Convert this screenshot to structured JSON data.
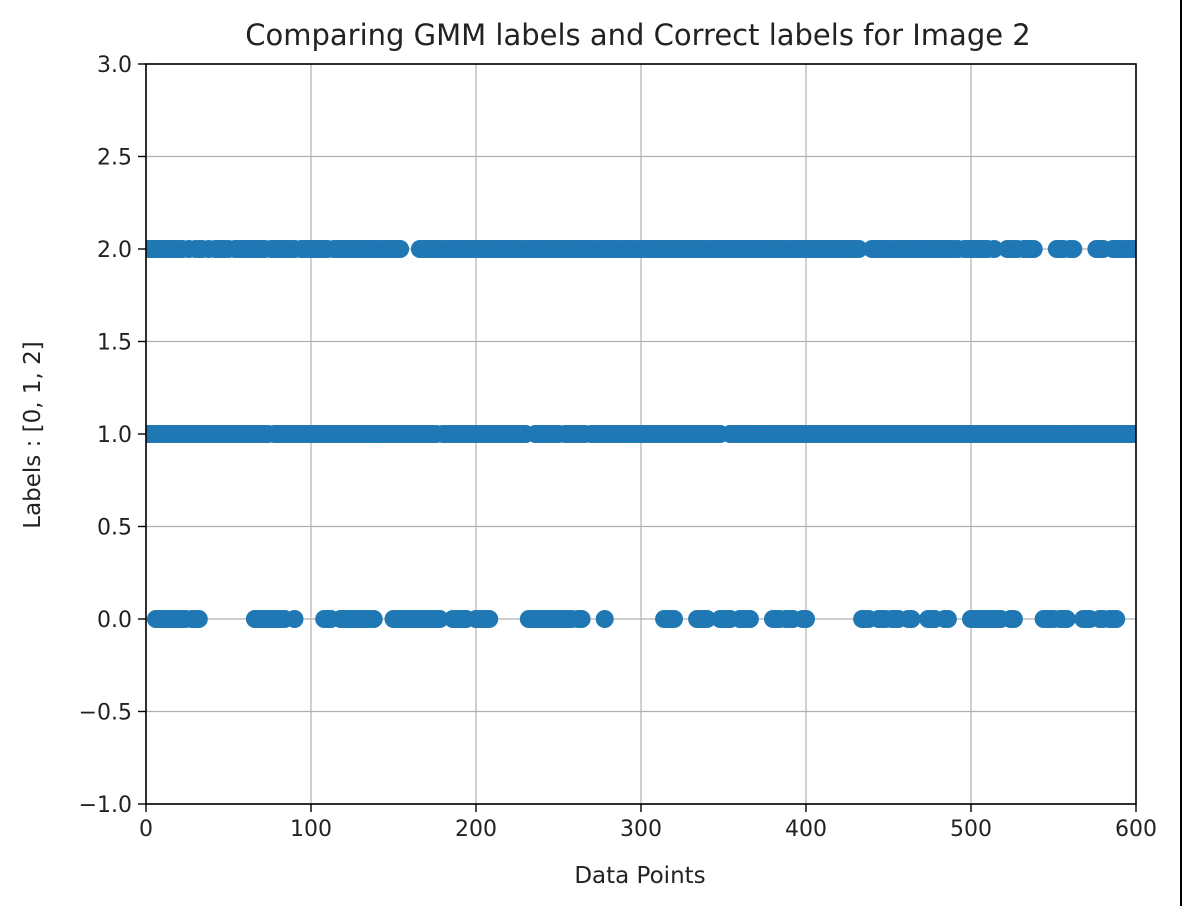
{
  "chart_data": {
    "type": "scatter",
    "title": "Comparing GMM labels and Correct labels for Image 2",
    "xlabel": "Data Points",
    "ylabel": "Labels : [0, 1, 2]",
    "xlim": [
      0,
      600
    ],
    "ylim": [
      -1.0,
      3.0
    ],
    "xticks": [
      "0",
      "100",
      "200",
      "300",
      "400",
      "500",
      "600"
    ],
    "yticks": [
      "−1.0",
      "−0.5",
      "0.0",
      "0.5",
      "1.0",
      "1.5",
      "2.0",
      "2.5",
      "3.0"
    ],
    "grid": true,
    "marker_color": "#1f77b4",
    "series": [
      {
        "points": [
          {
            "y": 2,
            "x": [
              0,
              2,
              4,
              6,
              8,
              10,
              12,
              14,
              16,
              18,
              20,
              22,
              26,
              30,
              32,
              34,
              38,
              42,
              44,
              46,
              48,
              50,
              54,
              56,
              58,
              60,
              62,
              64,
              66,
              68,
              70,
              72,
              76,
              78,
              80,
              82,
              84,
              86,
              88,
              90,
              94,
              96,
              98,
              100,
              102,
              104,
              106,
              108,
              110,
              114,
              116,
              118,
              120,
              122,
              124,
              126,
              128,
              130,
              132,
              134,
              136,
              138,
              140,
              142,
              144,
              146,
              148,
              150,
              152,
              154,
              166,
              168,
              170,
              172,
              174,
              176,
              178,
              180,
              182,
              184,
              186,
              188,
              190,
              192,
              194,
              196,
              198,
              200,
              202,
              204,
              206,
              208,
              210,
              212,
              214,
              216,
              218,
              220,
              222,
              224,
              226,
              228,
              230,
              232,
              234,
              236,
              238,
              240,
              242,
              244,
              246,
              248,
              250,
              252,
              254,
              256,
              258,
              260,
              262,
              264,
              266,
              268,
              270,
              272,
              274,
              276,
              278,
              280,
              282,
              284,
              286,
              288,
              290,
              292,
              294,
              296,
              298,
              300,
              302,
              304,
              306,
              308,
              310,
              312,
              314,
              316,
              318,
              320,
              322,
              324,
              326,
              328,
              330,
              332,
              334,
              336,
              338,
              340,
              342,
              344,
              346,
              348,
              350,
              352,
              354,
              356,
              358,
              360,
              362,
              364,
              366,
              368,
              370,
              372,
              374,
              376,
              378,
              380,
              382,
              384,
              386,
              388,
              390,
              392,
              394,
              396,
              398,
              400,
              402,
              404,
              406,
              408,
              410,
              412,
              414,
              416,
              418,
              420,
              422,
              424,
              426,
              428,
              430,
              432,
              440,
              442,
              444,
              446,
              448,
              450,
              452,
              454,
              456,
              458,
              460,
              462,
              464,
              466,
              468,
              470,
              472,
              474,
              476,
              478,
              480,
              482,
              484,
              486,
              488,
              490,
              492,
              496,
              498,
              500,
              502,
              504,
              506,
              508,
              510,
              514,
              522,
              524,
              526,
              528,
              532,
              534,
              536,
              538,
              552,
              554,
              556,
              560,
              562,
              576,
              578,
              580,
              586,
              588,
              590,
              592,
              594,
              596,
              598,
              600
            ]
          },
          {
            "y": 1,
            "x": [
              0,
              2,
              4,
              6,
              8,
              10,
              12,
              14,
              16,
              18,
              20,
              22,
              24,
              26,
              28,
              30,
              32,
              34,
              36,
              38,
              40,
              42,
              44,
              46,
              48,
              50,
              52,
              54,
              56,
              58,
              60,
              62,
              64,
              66,
              68,
              70,
              72,
              74,
              78,
              80,
              82,
              84,
              86,
              88,
              90,
              92,
              94,
              96,
              98,
              100,
              102,
              104,
              106,
              108,
              110,
              112,
              114,
              116,
              118,
              120,
              122,
              124,
              126,
              128,
              130,
              132,
              134,
              136,
              138,
              140,
              142,
              144,
              146,
              148,
              150,
              152,
              154,
              156,
              158,
              160,
              162,
              164,
              166,
              168,
              170,
              172,
              174,
              176,
              180,
              182,
              184,
              186,
              188,
              190,
              192,
              194,
              196,
              198,
              200,
              202,
              204,
              206,
              208,
              210,
              212,
              214,
              216,
              218,
              220,
              222,
              224,
              226,
              228,
              230,
              236,
              238,
              240,
              242,
              244,
              246,
              248,
              250,
              254,
              256,
              258,
              260,
              262,
              264,
              266,
              270,
              272,
              274,
              276,
              278,
              280,
              282,
              284,
              286,
              288,
              290,
              292,
              294,
              296,
              298,
              300,
              302,
              304,
              306,
              308,
              310,
              312,
              314,
              316,
              318,
              320,
              322,
              324,
              326,
              328,
              330,
              332,
              334,
              336,
              338,
              340,
              342,
              344,
              346,
              348,
              354,
              356,
              358,
              360,
              362,
              364,
              366,
              368,
              370,
              372,
              374,
              376,
              378,
              380,
              382,
              384,
              386,
              388,
              390,
              392,
              394,
              396,
              398,
              400,
              402,
              404,
              406,
              408,
              410,
              412,
              414,
              416,
              418,
              420,
              422,
              424,
              426,
              428,
              430,
              432,
              434,
              436,
              438,
              440,
              442,
              444,
              446,
              448,
              450,
              452,
              454,
              456,
              458,
              460,
              462,
              464,
              466,
              468,
              470,
              472,
              474,
              476,
              478,
              480,
              482,
              484,
              486,
              488,
              490,
              492,
              494,
              496,
              498,
              500,
              502,
              504,
              506,
              508,
              510,
              512,
              514,
              516,
              518,
              520,
              522,
              524,
              526,
              528,
              530,
              532,
              534,
              536,
              538,
              540,
              542,
              544,
              546,
              548,
              550,
              552,
              554,
              556,
              558,
              560,
              562,
              564,
              566,
              568,
              570,
              572,
              574,
              576,
              578,
              580,
              582,
              584,
              586,
              588,
              590,
              592,
              594,
              596,
              598,
              600
            ]
          },
          {
            "y": 0,
            "x": [
              6,
              8,
              10,
              12,
              14,
              16,
              18,
              20,
              22,
              24,
              28,
              30,
              32,
              66,
              68,
              70,
              72,
              74,
              76,
              78,
              80,
              82,
              84,
              90,
              108,
              110,
              112,
              118,
              120,
              122,
              124,
              126,
              128,
              130,
              132,
              134,
              136,
              138,
              150,
              152,
              154,
              156,
              158,
              160,
              162,
              164,
              166,
              168,
              170,
              172,
              174,
              176,
              178,
              186,
              188,
              190,
              192,
              194,
              200,
              202,
              204,
              206,
              208,
              232,
              234,
              236,
              238,
              240,
              242,
              244,
              246,
              248,
              250,
              252,
              254,
              256,
              258,
              262,
              264,
              278,
              314,
              316,
              318,
              320,
              334,
              336,
              338,
              340,
              348,
              350,
              352,
              354,
              360,
              362,
              364,
              366,
              380,
              382,
              384,
              388,
              390,
              392,
              398,
              400,
              434,
              436,
              438,
              444,
              446,
              448,
              452,
              454,
              456,
              462,
              464,
              474,
              476,
              478,
              484,
              486,
              500,
              502,
              504,
              506,
              508,
              510,
              512,
              514,
              516,
              518,
              524,
              526,
              544,
              546,
              548,
              550,
              554,
              556,
              558,
              568,
              570,
              572,
              578,
              580,
              584,
              586,
              588
            ]
          }
        ]
      }
    ]
  }
}
